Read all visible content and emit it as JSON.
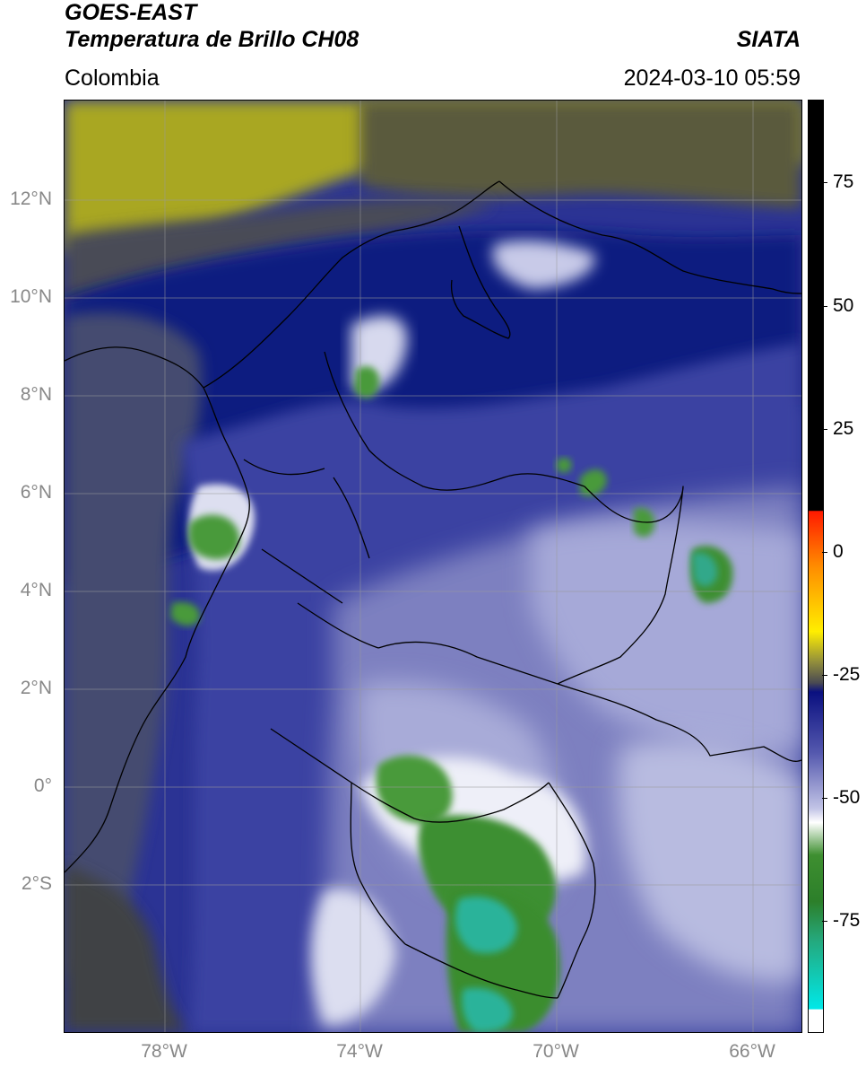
{
  "header": {
    "title_line1": "GOES-EAST",
    "title_line2": "Temperatura de Brillo CH08",
    "subtitle": "Colombia",
    "brand": "SIATA",
    "timestamp": "2024-03-10 05:59"
  },
  "map": {
    "lon_range": [
      -80,
      -65
    ],
    "lat_range": [
      -5,
      14
    ],
    "lat_labels": [
      "12°N",
      "10°N",
      "8°N",
      "6°N",
      "4°N",
      "2°N",
      "0°",
      "2°S"
    ],
    "lon_labels": [
      "78°W",
      "74°W",
      "70°W",
      "66°W"
    ],
    "colors": {
      "background_yellow": "#b0ae1e",
      "dark_gray": "#444444",
      "navy": "#10187e",
      "medium_blue": "#3a40a0",
      "light_lavender": "#b2b4dc",
      "white": "#f4f4fa",
      "green": "#3d8f2f",
      "teal": "#27b59a",
      "border": "#000000",
      "grid": "#9a9a9a"
    }
  },
  "colorbar": {
    "labels": [
      "75",
      "50",
      "25",
      "0",
      "-25",
      "-50",
      "-75"
    ],
    "range": [
      -100,
      90
    ]
  }
}
